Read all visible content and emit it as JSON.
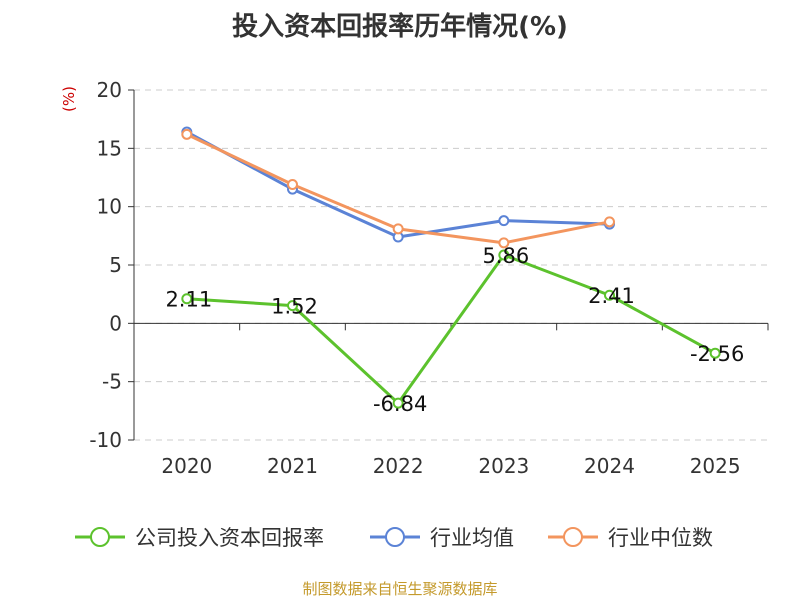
{
  "chart_data": {
    "type": "line",
    "title": "投入资本回报率历年情况(%)",
    "ylabel": "(%)",
    "categories": [
      "2020",
      "2021",
      "2022",
      "2023",
      "2024",
      "2025"
    ],
    "ylim": [
      -10,
      20
    ],
    "yticks": [
      -10,
      -5,
      0,
      5,
      10,
      15,
      20
    ],
    "grid": true,
    "legend_position": "bottom",
    "series": [
      {
        "name": "公司投入资本回报率",
        "color": "#5cc22d",
        "values": [
          2.11,
          1.52,
          -6.84,
          5.86,
          2.41,
          -2.56
        ],
        "labels": [
          "2.11",
          "1.52",
          "-6.84",
          "5.86",
          "2.41",
          "-2.56"
        ]
      },
      {
        "name": "行业均值",
        "color": "#5b83d6",
        "values": [
          16.4,
          11.5,
          7.4,
          8.8,
          8.5,
          null
        ]
      },
      {
        "name": "行业中位数",
        "color": "#f3955e",
        "values": [
          16.2,
          11.9,
          8.1,
          6.9,
          8.7,
          null
        ]
      }
    ]
  },
  "source": "制图数据来自恒生聚源数据库"
}
